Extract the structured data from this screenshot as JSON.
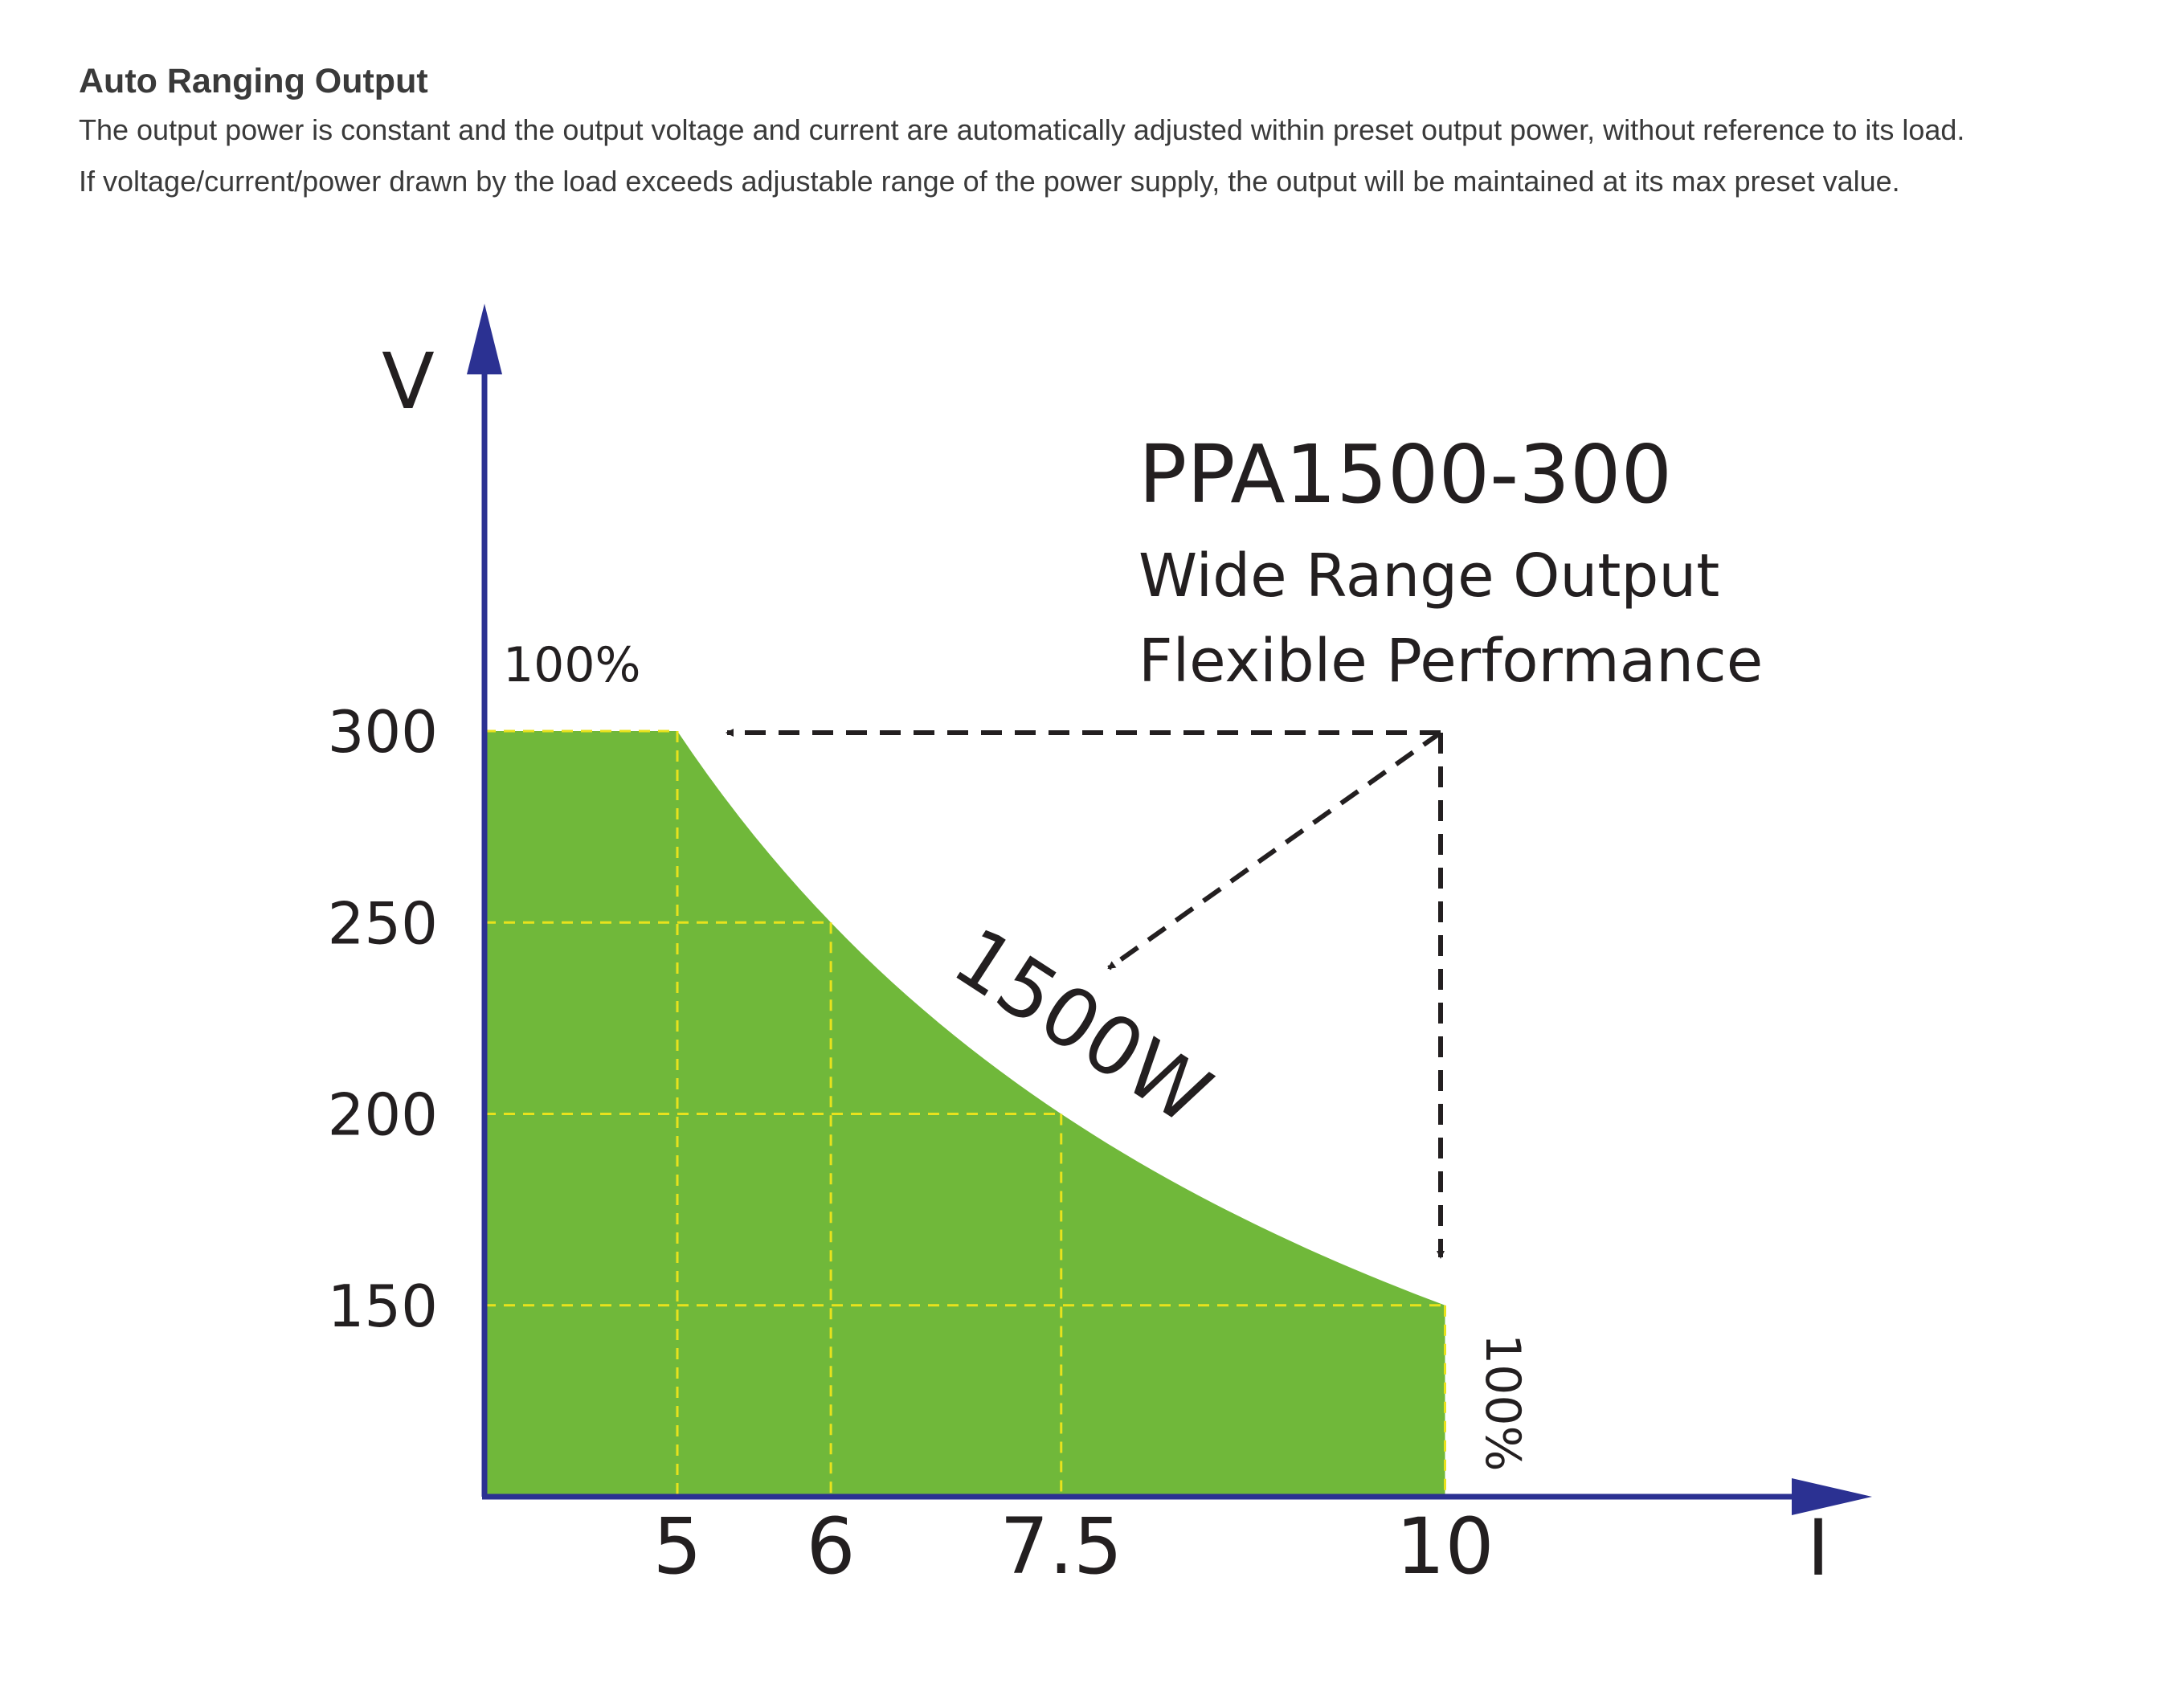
{
  "header": {
    "title": "Auto Ranging Output",
    "line1": "The output power is constant and the output voltage and current are automatically adjusted within preset output power, without reference to its load.",
    "line2": "If voltage/current/power drawn by the load exceeds adjustable range of the power supply, the output will be maintained at its max preset value."
  },
  "chart_data": {
    "type": "area",
    "xlabel": "I",
    "ylabel": "V",
    "x_ticks": [
      "5",
      "6",
      "7.5",
      "10"
    ],
    "y_ticks": [
      "300",
      "250",
      "200",
      "150"
    ],
    "series": [
      {
        "x": [
          0,
          5,
          6,
          7.5,
          10,
          10
        ],
        "y": [
          300,
          300,
          250,
          200,
          150,
          100
        ]
      }
    ],
    "xlim": [
      3.3,
      12
    ],
    "ylim": [
      100,
      300
    ],
    "gridlines": {
      "x": [
        5,
        6,
        7.5,
        10
      ],
      "y": [
        150,
        200,
        250,
        300
      ],
      "style": "dashed"
    },
    "power_curve_watts": 1500,
    "curve_label": "1500W",
    "model": "PPA1500-300",
    "subtitle_1": "Wide Range Output",
    "subtitle_2": "Flexible Performance",
    "annotation_top": "100%",
    "annotation_right": "100%",
    "colors": {
      "fill": "#70b83a",
      "axis": "#2b3192",
      "grid": "#e8e21c",
      "arrow": "#231f20",
      "text": "#231f20"
    }
  }
}
